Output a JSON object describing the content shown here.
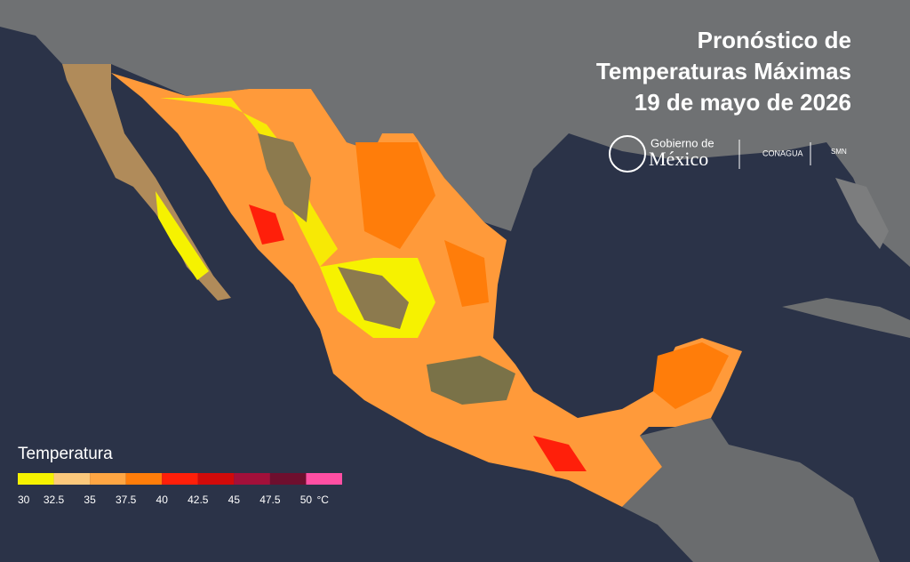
{
  "header": {
    "title_lines": [
      "Pronóstico de",
      "Temperaturas Máximas",
      "19 de mayo de 2026"
    ]
  },
  "logos": {
    "gobierno_top": "Gobierno de",
    "gobierno_bottom": "México",
    "conagua": "CONAGUA",
    "smn": "SMN"
  },
  "legend": {
    "title": "Temperatura",
    "labels": [
      "30",
      "32.5",
      "35",
      "37.5",
      "40",
      "42.5",
      "45",
      "47.5",
      "50"
    ],
    "unit": "°C",
    "colors": [
      "#f6f200",
      "#fcc97c",
      "#ffa643",
      "#ff7d0a",
      "#ff1f0a",
      "#d10a0a",
      "#a3103a",
      "#6e0f2e",
      "#ff4fa3"
    ]
  }
}
